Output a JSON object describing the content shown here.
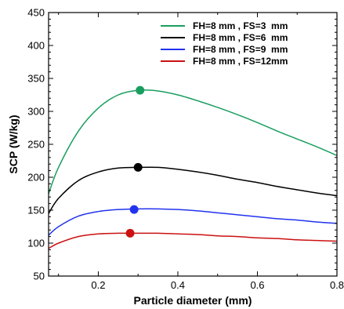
{
  "chart_data": {
    "type": "line",
    "title": "",
    "xlabel": "Particle diameter (mm)",
    "ylabel": "SCP (W/kg)",
    "xlim": [
      0.075,
      0.8
    ],
    "ylim": [
      50,
      450
    ],
    "x_ticks": [
      0.2,
      0.4,
      0.6,
      0.8
    ],
    "y_ticks": [
      50,
      100,
      150,
      200,
      250,
      300,
      350,
      400,
      450
    ],
    "grid": false,
    "legend_position": "top-right",
    "series": [
      {
        "name": "FH=8 mm , FS=3  mm",
        "color": "#1a9e5f",
        "x": [
          0.075,
          0.1,
          0.15,
          0.2,
          0.25,
          0.3,
          0.35,
          0.4,
          0.45,
          0.5,
          0.55,
          0.6,
          0.65,
          0.7,
          0.75,
          0.8
        ],
        "y": [
          175,
          215,
          270,
          305,
          325,
          332,
          331,
          325,
          316,
          306,
          295,
          283,
          270,
          258,
          246,
          233
        ],
        "optimum": {
          "x": 0.305,
          "y": 332
        }
      },
      {
        "name": "FH=8 mm , FS=6  mm",
        "color": "#000000",
        "x": [
          0.075,
          0.1,
          0.15,
          0.2,
          0.25,
          0.3,
          0.35,
          0.4,
          0.45,
          0.5,
          0.55,
          0.6,
          0.65,
          0.7,
          0.75,
          0.8
        ],
        "y": [
          145,
          168,
          195,
          208,
          214,
          215,
          215,
          212,
          208,
          203,
          197,
          192,
          186,
          181,
          176,
          172
        ],
        "optimum": {
          "x": 0.3,
          "y": 215
        }
      },
      {
        "name": "FH=8 mm , FS=9  mm",
        "color": "#2233ee",
        "x": [
          0.075,
          0.1,
          0.15,
          0.2,
          0.25,
          0.3,
          0.35,
          0.4,
          0.45,
          0.5,
          0.55,
          0.6,
          0.65,
          0.7,
          0.75,
          0.8
        ],
        "y": [
          112,
          125,
          141,
          148,
          151,
          152,
          152,
          151,
          149,
          146,
          143,
          140,
          137,
          135,
          132,
          130
        ],
        "optimum": {
          "x": 0.29,
          "y": 151
        }
      },
      {
        "name": "FH=8 mm , FS=12mm",
        "color": "#cc1111",
        "x": [
          0.075,
          0.1,
          0.15,
          0.2,
          0.25,
          0.3,
          0.35,
          0.4,
          0.45,
          0.5,
          0.55,
          0.6,
          0.65,
          0.7,
          0.75,
          0.8
        ],
        "y": [
          92,
          100,
          110,
          114,
          115,
          115,
          115,
          114,
          113,
          111,
          110,
          108,
          107,
          105,
          104,
          103
        ],
        "optimum": {
          "x": 0.28,
          "y": 115
        }
      }
    ]
  }
}
